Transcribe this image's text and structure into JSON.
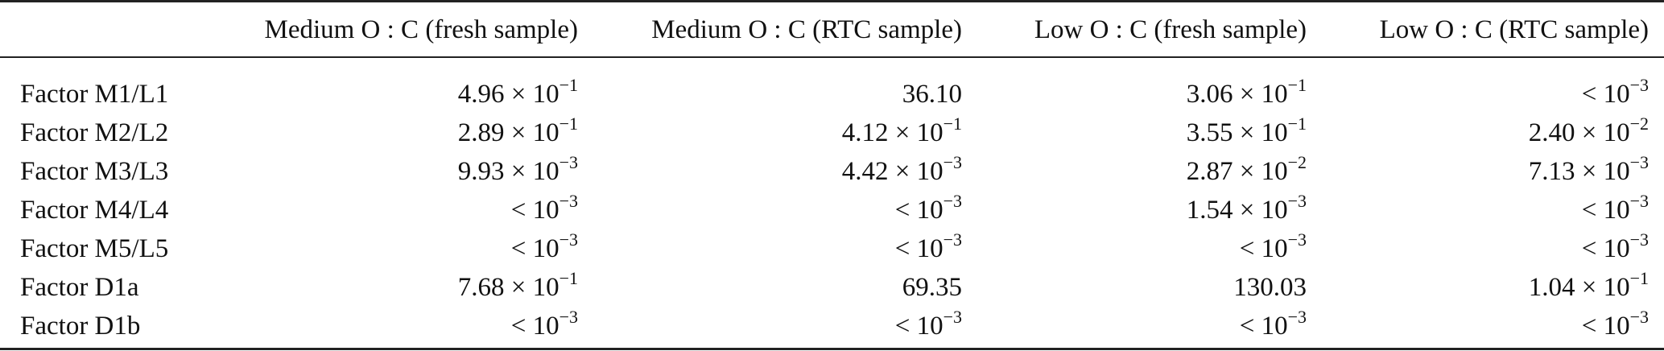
{
  "table": {
    "headers": [
      "",
      "Medium O : C (fresh sample)",
      "Medium O : C (RTC sample)",
      "Low O : C (fresh sample)",
      "Low O : C (RTC sample)"
    ],
    "rows": [
      {
        "label": "Factor M1/L1",
        "cells": [
          {
            "text": "4.96 × 10",
            "sup": "−1"
          },
          {
            "text": "36.10",
            "sup": ""
          },
          {
            "text": "3.06 × 10",
            "sup": "−1"
          },
          {
            "text": "< 10",
            "sup": "−3"
          }
        ]
      },
      {
        "label": "Factor M2/L2",
        "cells": [
          {
            "text": "2.89 × 10",
            "sup": "−1"
          },
          {
            "text": "4.12 × 10",
            "sup": "−1"
          },
          {
            "text": "3.55 × 10",
            "sup": "−1"
          },
          {
            "text": "2.40 × 10",
            "sup": "−2"
          }
        ]
      },
      {
        "label": "Factor M3/L3",
        "cells": [
          {
            "text": "9.93 × 10",
            "sup": "−3"
          },
          {
            "text": "4.42 × 10",
            "sup": "−3"
          },
          {
            "text": "2.87 × 10",
            "sup": "−2"
          },
          {
            "text": "7.13 × 10",
            "sup": "−3"
          }
        ]
      },
      {
        "label": "Factor M4/L4",
        "cells": [
          {
            "text": "< 10",
            "sup": "−3"
          },
          {
            "text": "< 10",
            "sup": "−3"
          },
          {
            "text": "1.54 × 10",
            "sup": "−3"
          },
          {
            "text": "< 10",
            "sup": "−3"
          }
        ]
      },
      {
        "label": "Factor M5/L5",
        "cells": [
          {
            "text": "< 10",
            "sup": "−3"
          },
          {
            "text": "< 10",
            "sup": "−3"
          },
          {
            "text": "< 10",
            "sup": "−3"
          },
          {
            "text": "< 10",
            "sup": "−3"
          }
        ]
      },
      {
        "label": "Factor D1a",
        "cells": [
          {
            "text": "7.68 × 10",
            "sup": "−1"
          },
          {
            "text": "69.35",
            "sup": ""
          },
          {
            "text": "130.03",
            "sup": ""
          },
          {
            "text": "1.04 × 10",
            "sup": "−1"
          }
        ]
      },
      {
        "label": "Factor D1b",
        "cells": [
          {
            "text": "< 10",
            "sup": "−3"
          },
          {
            "text": "< 10",
            "sup": "−3"
          },
          {
            "text": "< 10",
            "sup": "−3"
          },
          {
            "text": "< 10",
            "sup": "−3"
          }
        ]
      }
    ]
  }
}
